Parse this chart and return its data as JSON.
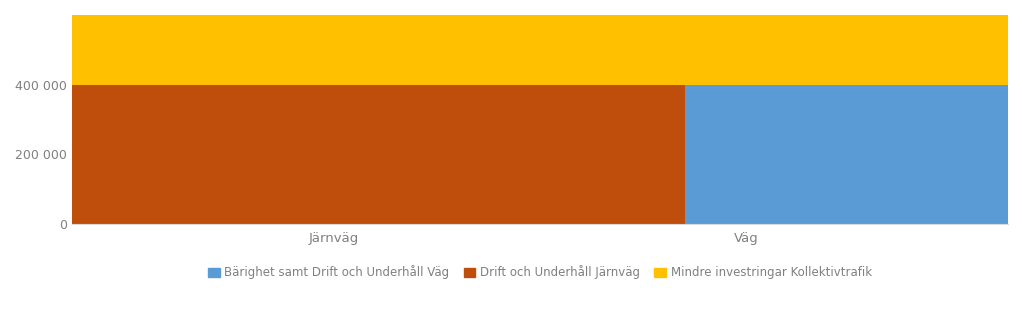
{
  "categories": [
    "Järnväg",
    "Väg"
  ],
  "series": [
    {
      "label": "Bärighet samt Drift och Underhåll Väg",
      "color": "#5b9bd5",
      "values": [
        0,
        400000
      ]
    },
    {
      "label": "Drift och Underhåll Järnväg",
      "color": "#bf4e0c",
      "values": [
        400000,
        0
      ]
    },
    {
      "label": "Mindre investringar Kollektivtrafik",
      "color": "#ffc000",
      "values": [
        200000,
        200000
      ]
    }
  ],
  "ylim": [
    0,
    600000
  ],
  "yticks": [
    0,
    200000,
    400000
  ],
  "ytick_labels": [
    "0",
    "200 000",
    "400 000"
  ],
  "background_color": "#ffffff",
  "grid_color": "#d9d9d9",
  "tick_color": "#808080",
  "bar_width": 0.75,
  "bar_positions": [
    0.28,
    0.72
  ],
  "legend_fontsize": 8.5,
  "tick_fontsize": 9,
  "label_fontsize": 9.5
}
